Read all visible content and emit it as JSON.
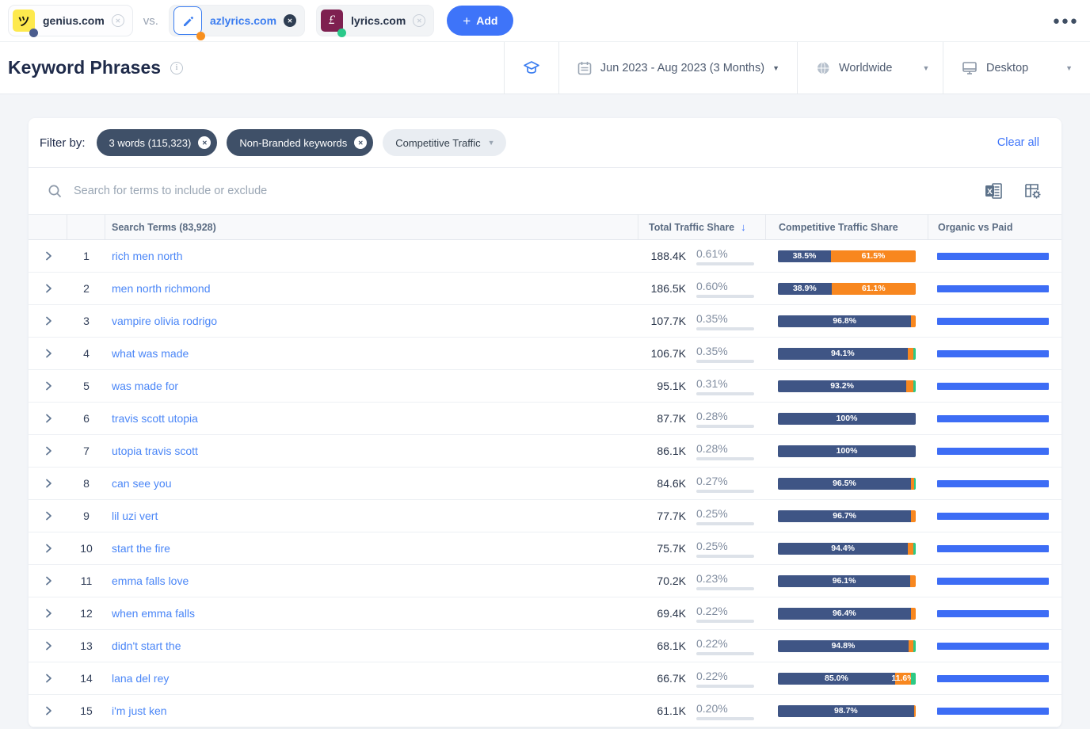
{
  "topbar": {
    "vs_label": "vs.",
    "add_label": "Add",
    "competitors": [
      {
        "name": "genius.com",
        "favicon": "genius-favicon",
        "dot_color": "#4b5d8e"
      },
      {
        "name": "azlyrics.com",
        "favicon": "edit-pencil",
        "dot_color": "#f78f1e"
      },
      {
        "name": "lyrics.com",
        "favicon": "lyrics-favicon",
        "dot_color": "#2bc98a"
      }
    ]
  },
  "header": {
    "title": "Keyword Phrases",
    "date_range": "Jun 2023 - Aug 2023 (3 Months)",
    "country": "Worldwide",
    "device": "Desktop"
  },
  "filters": {
    "label": "Filter by:",
    "chips": [
      {
        "label": "3 words (115,323)",
        "removable": true
      },
      {
        "label": "Non-Branded keywords",
        "removable": true
      },
      {
        "label": "Competitive Traffic",
        "removable": false,
        "dropdown": true
      }
    ],
    "clear_all": "Clear all"
  },
  "search": {
    "placeholder": "Search for terms to include or exclude"
  },
  "colors": {
    "competitors": [
      "#3f5585",
      "#f8871f",
      "#2cc985"
    ],
    "organic": "#3d6df5",
    "accent": "#3e74f9"
  },
  "table": {
    "columns": {
      "terms": "Search Terms (83,928)",
      "total": "Total Traffic Share",
      "competitive": "Competitive Traffic Share",
      "organic": "Organic vs Paid"
    },
    "rows": [
      {
        "rank": "1",
        "term": "rich men north",
        "volume": "188.4K",
        "share": "0.61%",
        "share_value": 0.61,
        "organic": 100,
        "segments": [
          {
            "v": 38.5,
            "label": "38.5%"
          },
          {
            "v": 61.5,
            "label": "61.5%"
          },
          {
            "v": 0
          }
        ]
      },
      {
        "rank": "2",
        "term": "men north richmond",
        "volume": "186.5K",
        "share": "0.60%",
        "share_value": 0.6,
        "organic": 100,
        "segments": [
          {
            "v": 38.9,
            "label": "38.9%"
          },
          {
            "v": 61.1,
            "label": "61.1%"
          },
          {
            "v": 0
          }
        ]
      },
      {
        "rank": "3",
        "term": "vampire olivia rodrigo",
        "volume": "107.7K",
        "share": "0.35%",
        "share_value": 0.35,
        "organic": 100,
        "segments": [
          {
            "v": 96.8,
            "label": "96.8%"
          },
          {
            "v": 3.2
          },
          {
            "v": 0
          }
        ]
      },
      {
        "rank": "4",
        "term": "what was made",
        "volume": "106.7K",
        "share": "0.35%",
        "share_value": 0.35,
        "organic": 100,
        "segments": [
          {
            "v": 94.1,
            "label": "94.1%"
          },
          {
            "v": 4.0
          },
          {
            "v": 1.9
          }
        ]
      },
      {
        "rank": "5",
        "term": "was made for",
        "volume": "95.1K",
        "share": "0.31%",
        "share_value": 0.31,
        "organic": 100,
        "segments": [
          {
            "v": 93.2,
            "label": "93.2%"
          },
          {
            "v": 4.8
          },
          {
            "v": 2.0
          }
        ]
      },
      {
        "rank": "6",
        "term": "travis scott utopia",
        "volume": "87.7K",
        "share": "0.28%",
        "share_value": 0.28,
        "organic": 100,
        "segments": [
          {
            "v": 100,
            "label": "100%"
          },
          {
            "v": 0
          },
          {
            "v": 0
          }
        ]
      },
      {
        "rank": "7",
        "term": "utopia travis scott",
        "volume": "86.1K",
        "share": "0.28%",
        "share_value": 0.28,
        "organic": 100,
        "segments": [
          {
            "v": 100,
            "label": "100%"
          },
          {
            "v": 0
          },
          {
            "v": 0
          }
        ]
      },
      {
        "rank": "8",
        "term": "can see you",
        "volume": "84.6K",
        "share": "0.27%",
        "share_value": 0.27,
        "organic": 100,
        "segments": [
          {
            "v": 96.5,
            "label": "96.5%"
          },
          {
            "v": 2.3
          },
          {
            "v": 1.2
          }
        ]
      },
      {
        "rank": "9",
        "term": "lil uzi vert",
        "volume": "77.7K",
        "share": "0.25%",
        "share_value": 0.25,
        "organic": 100,
        "segments": [
          {
            "v": 96.7,
            "label": "96.7%"
          },
          {
            "v": 3.3
          },
          {
            "v": 0
          }
        ]
      },
      {
        "rank": "10",
        "term": "start the fire",
        "volume": "75.7K",
        "share": "0.25%",
        "share_value": 0.25,
        "organic": 100,
        "segments": [
          {
            "v": 94.4,
            "label": "94.4%"
          },
          {
            "v": 3.7
          },
          {
            "v": 1.9
          }
        ]
      },
      {
        "rank": "11",
        "term": "emma falls love",
        "volume": "70.2K",
        "share": "0.23%",
        "share_value": 0.23,
        "organic": 100,
        "segments": [
          {
            "v": 96.1,
            "label": "96.1%"
          },
          {
            "v": 3.9
          },
          {
            "v": 0
          }
        ]
      },
      {
        "rank": "12",
        "term": "when emma falls",
        "volume": "69.4K",
        "share": "0.22%",
        "share_value": 0.22,
        "organic": 100,
        "segments": [
          {
            "v": 96.4,
            "label": "96.4%"
          },
          {
            "v": 3.6
          },
          {
            "v": 0
          }
        ]
      },
      {
        "rank": "13",
        "term": "didn't start the",
        "volume": "68.1K",
        "share": "0.22%",
        "share_value": 0.22,
        "organic": 100,
        "segments": [
          {
            "v": 94.8,
            "label": "94.8%"
          },
          {
            "v": 3.2
          },
          {
            "v": 2.0
          }
        ]
      },
      {
        "rank": "14",
        "term": "lana del rey",
        "volume": "66.7K",
        "share": "0.22%",
        "share_value": 0.22,
        "organic": 100,
        "segments": [
          {
            "v": 85.0,
            "label": "85.0%"
          },
          {
            "v": 11.6,
            "label": "11.6%"
          },
          {
            "v": 3.4
          }
        ]
      },
      {
        "rank": "15",
        "term": "i'm just ken",
        "volume": "61.1K",
        "share": "0.20%",
        "share_value": 0.2,
        "organic": 100,
        "segments": [
          {
            "v": 98.7,
            "label": "98.7%"
          },
          {
            "v": 1.3
          },
          {
            "v": 0
          }
        ]
      }
    ]
  }
}
